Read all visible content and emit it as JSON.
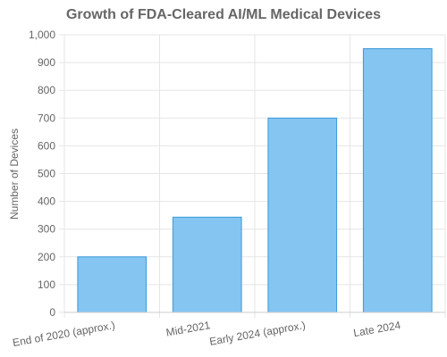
{
  "chart_data": {
    "type": "bar",
    "title": "Growth of FDA-Cleared AI/ML Medical Devices",
    "xlabel": "",
    "ylabel": "Number of Devices",
    "categories": [
      "End of 2020 (approx.)",
      "Mid-2021",
      "Early 2024 (approx.)",
      "Late 2024"
    ],
    "values": [
      200,
      343,
      700,
      950
    ],
    "ylim": [
      0,
      1000
    ],
    "yticks": [
      0,
      100,
      200,
      300,
      400,
      500,
      600,
      700,
      800,
      900,
      1000
    ],
    "ytick_labels": [
      "0",
      "100",
      "200",
      "300",
      "400",
      "500",
      "600",
      "700",
      "800",
      "900",
      "1,000"
    ],
    "grid": true,
    "legend": "none",
    "colors": {
      "bar_fill": "#85c5f2",
      "bar_stroke": "#3a9ad9",
      "grid": "#e5e5e5",
      "text": "#666666"
    }
  }
}
